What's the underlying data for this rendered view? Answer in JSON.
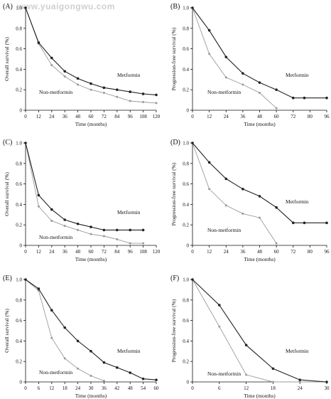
{
  "watermark": "www.yuaigongwu.com",
  "colors": {
    "metformin": "#222222",
    "non_metformin": "#9a9a9a",
    "axis": "#111111"
  },
  "chart_data": [
    {
      "panel": "(A)",
      "type": "line",
      "xlabel": "Time (months)",
      "ylabel": "Overall survival (%)",
      "xlim": [
        0,
        120
      ],
      "ylim": [
        0,
        1.0
      ],
      "xticks": [
        "0",
        "12",
        "24",
        "36",
        "48",
        "60",
        "72",
        "84",
        "96",
        "108",
        "120"
      ],
      "yticks": [
        "0",
        "0.2",
        "0.4",
        "0.6",
        "0.8",
        "1.0"
      ],
      "series": [
        {
          "name": "Metformin",
          "x": [
            0,
            12,
            24,
            36,
            48,
            60,
            72,
            84,
            96,
            108,
            120
          ],
          "y": [
            1.0,
            0.66,
            0.51,
            0.38,
            0.31,
            0.26,
            0.22,
            0.2,
            0.18,
            0.16,
            0.15
          ]
        },
        {
          "name": "Non-metformin",
          "x": [
            0,
            12,
            24,
            36,
            48,
            60,
            72,
            84,
            96,
            108,
            120
          ],
          "y": [
            1.0,
            0.65,
            0.44,
            0.33,
            0.25,
            0.2,
            0.17,
            0.13,
            0.09,
            0.08,
            0.07
          ]
        }
      ]
    },
    {
      "panel": "(B)",
      "type": "line",
      "xlabel": "Time (months)",
      "ylabel": "Progression-free survival (%)",
      "xlim": [
        0,
        96
      ],
      "ylim": [
        0,
        1.0
      ],
      "xticks": [
        "0",
        "12",
        "24",
        "36",
        "48",
        "60",
        "72",
        "80",
        "96"
      ],
      "yticks": [
        "0",
        "0.2",
        "0.4",
        "0.6",
        "0.8",
        "1.0"
      ],
      "series": [
        {
          "name": "Metformin",
          "x": [
            0,
            12,
            24,
            36,
            48,
            60,
            72,
            80,
            96
          ],
          "y": [
            1.0,
            0.78,
            0.52,
            0.36,
            0.27,
            0.2,
            0.12,
            0.12,
            0.12
          ]
        },
        {
          "name": "Non-metformin",
          "x": [
            0,
            12,
            24,
            36,
            48,
            60
          ],
          "y": [
            1.0,
            0.55,
            0.32,
            0.25,
            0.17,
            0.02
          ]
        }
      ]
    },
    {
      "panel": "(C)",
      "type": "line",
      "xlabel": "Time (months)",
      "ylabel": "Overall survival (%)",
      "xlim": [
        0,
        120
      ],
      "ylim": [
        0,
        1.0
      ],
      "xticks": [
        "0",
        "12",
        "24",
        "36",
        "48",
        "60",
        "72",
        "84",
        "96",
        "108",
        "120"
      ],
      "yticks": [
        "0",
        "0.2",
        "0.4",
        "0.6",
        "0.8",
        "1.0"
      ],
      "series": [
        {
          "name": "Metformin",
          "x": [
            0,
            12,
            24,
            36,
            48,
            60,
            72,
            84,
            96,
            108
          ],
          "y": [
            1.0,
            0.49,
            0.35,
            0.25,
            0.21,
            0.18,
            0.15,
            0.15,
            0.15,
            0.15
          ]
        },
        {
          "name": "Non-metformin",
          "x": [
            0,
            12,
            24,
            36,
            48,
            60,
            72,
            84,
            96,
            108
          ],
          "y": [
            1.0,
            0.38,
            0.24,
            0.19,
            0.15,
            0.11,
            0.09,
            0.06,
            0.02,
            0.02
          ]
        }
      ]
    },
    {
      "panel": "(D)",
      "type": "line",
      "xlabel": "Time (months)",
      "ylabel": "Progression-free survival (%)",
      "xlim": [
        0,
        96
      ],
      "ylim": [
        0,
        1.0
      ],
      "xticks": [
        "0",
        "12",
        "24",
        "36",
        "48",
        "60",
        "72",
        "80",
        "96"
      ],
      "yticks": [
        "0",
        "0.2",
        "0.4",
        "0.6",
        "0.8",
        "1.0"
      ],
      "series": [
        {
          "name": "Metformin",
          "x": [
            0,
            12,
            24,
            36,
            48,
            60,
            72,
            80,
            96
          ],
          "y": [
            1.0,
            0.81,
            0.65,
            0.55,
            0.48,
            0.37,
            0.22,
            0.22,
            0.22
          ]
        },
        {
          "name": "Non-metformin",
          "x": [
            0,
            12,
            24,
            36,
            48,
            60
          ],
          "y": [
            1.0,
            0.55,
            0.39,
            0.31,
            0.27,
            0.02
          ]
        }
      ]
    },
    {
      "panel": "(E)",
      "type": "line",
      "xlabel": "Time (months)",
      "ylabel": "Overall survival (%)",
      "xlim": [
        0,
        60
      ],
      "ylim": [
        0,
        1.0
      ],
      "xticks": [
        "0",
        "6",
        "12",
        "18",
        "24",
        "30",
        "36",
        "42",
        "48",
        "54",
        "60"
      ],
      "yticks": [
        "0",
        "0.2",
        "0.4",
        "0.6",
        "0.8",
        "1.0"
      ],
      "series": [
        {
          "name": "Metformin",
          "x": [
            0,
            6,
            12,
            18,
            24,
            30,
            36,
            42,
            48,
            54,
            60
          ],
          "y": [
            1.0,
            0.91,
            0.7,
            0.53,
            0.4,
            0.3,
            0.19,
            0.14,
            0.09,
            0.03,
            0.02
          ]
        },
        {
          "name": "Non-metformin",
          "x": [
            0,
            6,
            12,
            18,
            24,
            30,
            36
          ],
          "y": [
            1.0,
            0.89,
            0.43,
            0.23,
            0.13,
            0.06,
            0.01
          ]
        }
      ]
    },
    {
      "panel": "(F)",
      "type": "line",
      "xlabel": "Time (months)",
      "ylabel": "Progression-free survival (%)",
      "xlim": [
        0,
        30
      ],
      "ylim": [
        0,
        1.0
      ],
      "xticks": [
        "0",
        "6",
        "12",
        "18",
        "24",
        "30"
      ],
      "yticks": [
        "0",
        "0.2",
        "0.4",
        "0.6",
        "0.8",
        "1.0"
      ],
      "series": [
        {
          "name": "Metformin",
          "x": [
            0,
            6,
            12,
            18,
            24,
            30
          ],
          "y": [
            1.0,
            0.75,
            0.36,
            0.13,
            0.02,
            0.0
          ]
        },
        {
          "name": "Non-metformin",
          "x": [
            0,
            6,
            12,
            18,
            24,
            30
          ],
          "y": [
            1.0,
            0.54,
            0.07,
            0.0,
            0.0,
            0.0
          ]
        }
      ]
    }
  ]
}
